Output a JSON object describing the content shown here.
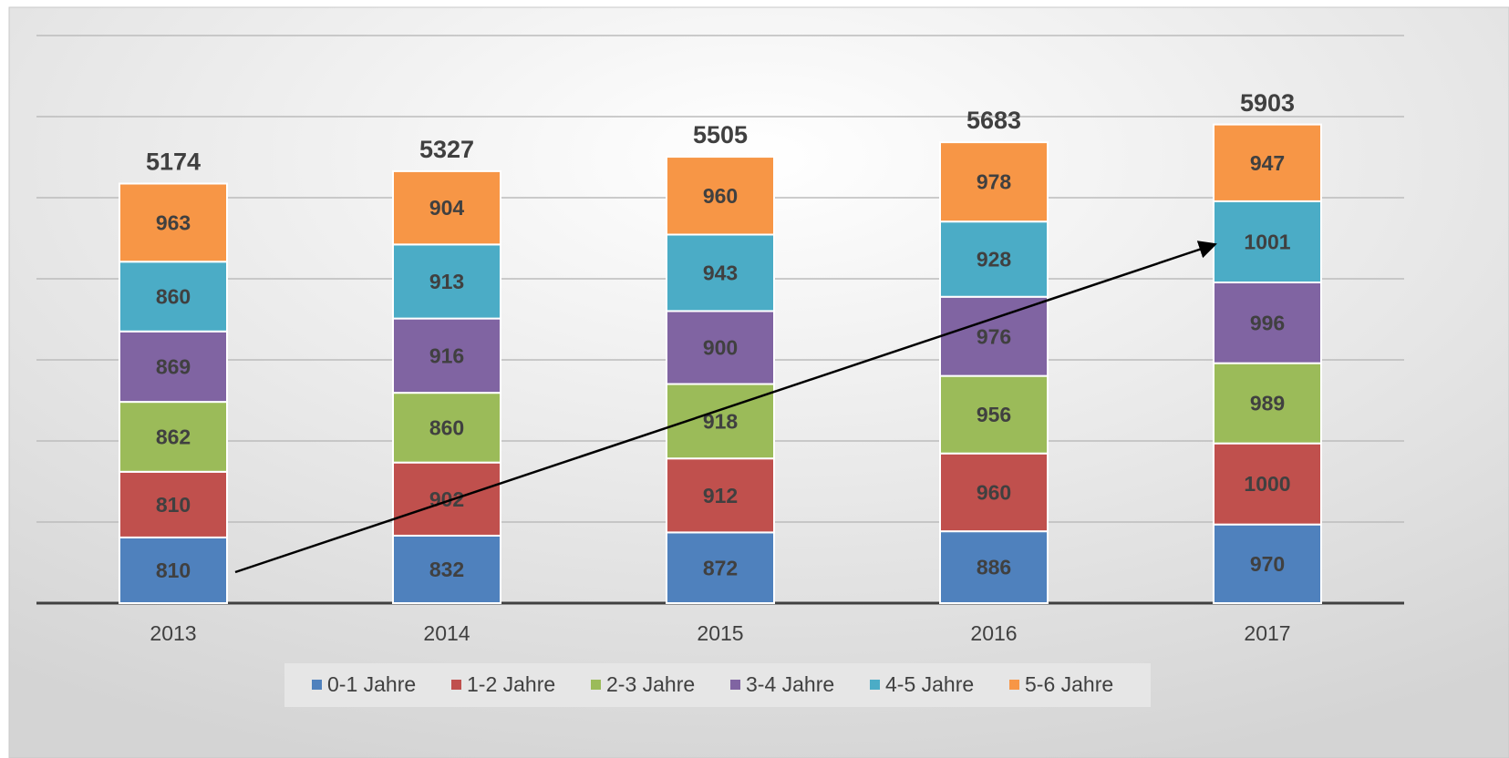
{
  "chart_data": {
    "type": "stacked_bar",
    "categories": [
      "2013",
      "2014",
      "2015",
      "2016",
      "2017"
    ],
    "series": [
      {
        "name": "0-1 Jahre",
        "color": "#4f81bd",
        "values": [
          810,
          832,
          872,
          886,
          970
        ]
      },
      {
        "name": "1-2 Jahre",
        "color": "#c0504d",
        "values": [
          810,
          902,
          912,
          960,
          1000
        ]
      },
      {
        "name": "2-3 Jahre",
        "color": "#9bbb59",
        "values": [
          862,
          860,
          918,
          956,
          989
        ]
      },
      {
        "name": "3-4 Jahre",
        "color": "#8064a2",
        "values": [
          869,
          916,
          900,
          976,
          996
        ]
      },
      {
        "name": "4-5 Jahre",
        "color": "#4bacc6",
        "values": [
          860,
          913,
          943,
          928,
          1001
        ]
      },
      {
        "name": "5-6 Jahre",
        "color": "#f79646",
        "values": [
          963,
          904,
          960,
          978,
          947
        ]
      }
    ],
    "totals": [
      5174,
      5327,
      5505,
      5683,
      5903
    ],
    "ylim": [
      0,
      7000
    ],
    "yticks": [
      0,
      1000,
      2000,
      3000,
      4000,
      5000,
      6000,
      7000
    ],
    "grid": true,
    "legend": "bottom"
  }
}
